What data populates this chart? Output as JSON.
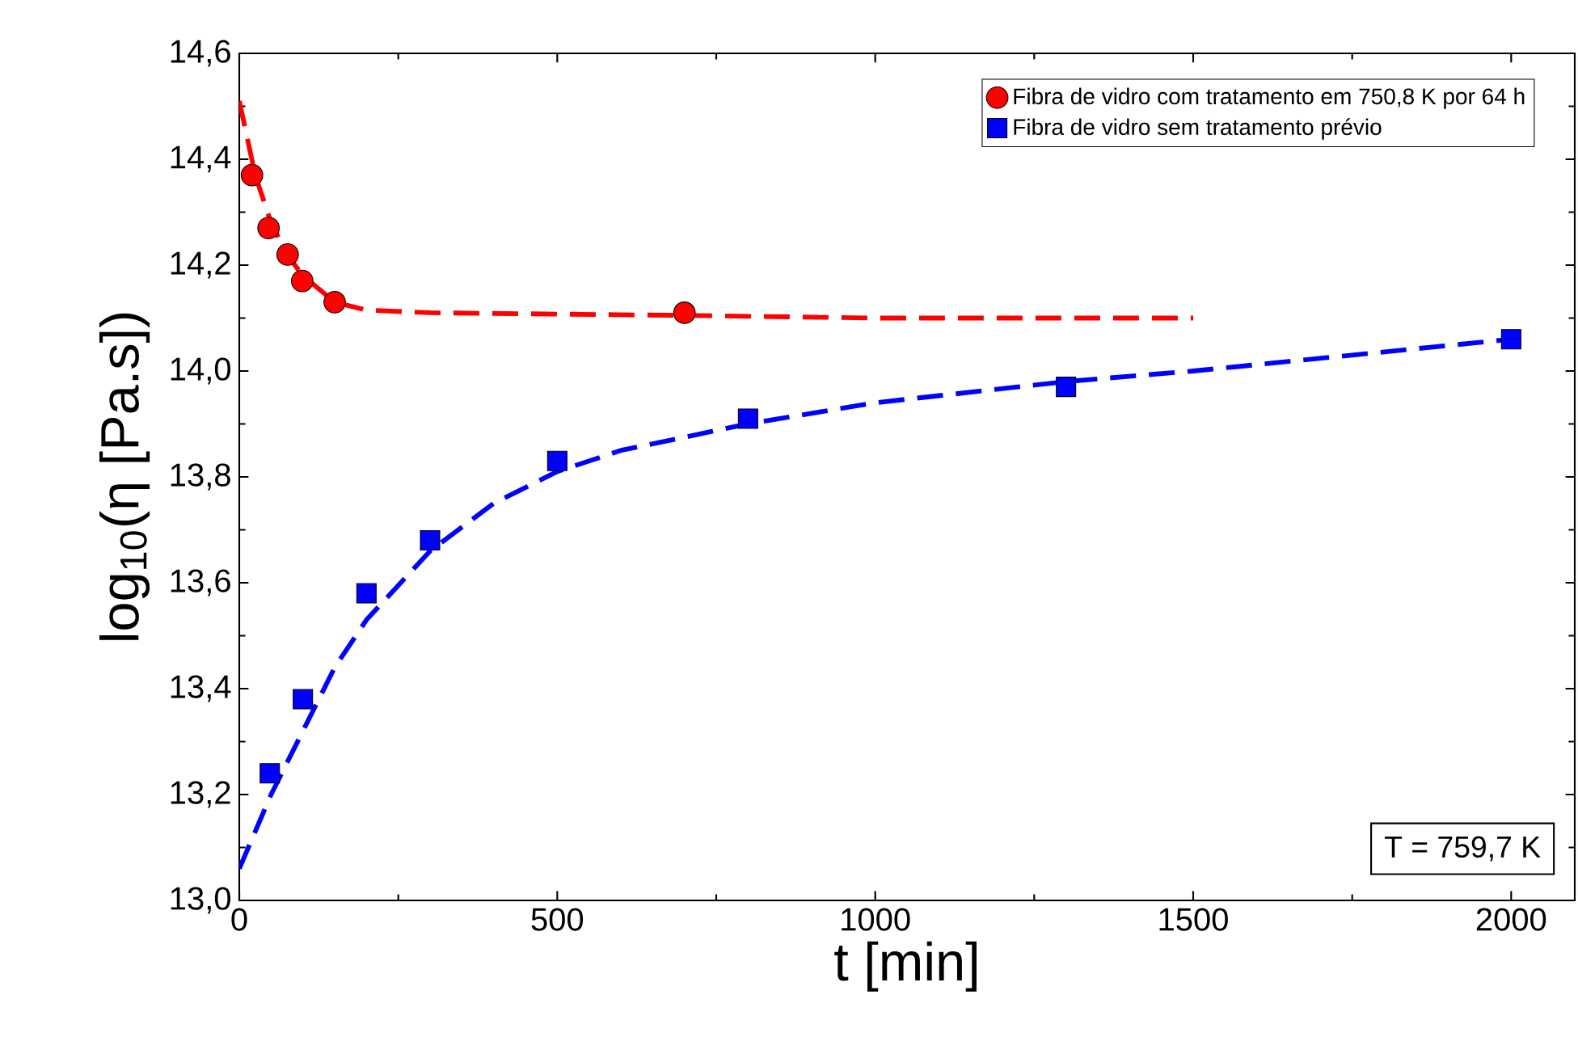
{
  "chart_data": {
    "type": "scatter",
    "xlabel": "t [min]",
    "ylabel": "log$_{10}$(η [Pa.s])",
    "xlim": [
      0,
      2100
    ],
    "ylim": [
      13.0,
      14.6
    ],
    "xticks": [
      0,
      500,
      1000,
      1500,
      2000
    ],
    "yticks": [
      {
        "value": 13.0,
        "label": "13,0"
      },
      {
        "value": 13.2,
        "label": "13,2"
      },
      {
        "value": 13.4,
        "label": "13,4"
      },
      {
        "value": 13.6,
        "label": "13,6"
      },
      {
        "value": 13.8,
        "label": "13,8"
      },
      {
        "value": 14.0,
        "label": "14,0"
      },
      {
        "value": 14.2,
        "label": "14,2"
      },
      {
        "value": 14.4,
        "label": "14,4"
      },
      {
        "value": 14.6,
        "label": "14,6"
      }
    ],
    "legend": "top right",
    "grid": false,
    "series": [
      {
        "name": "Fibra de vidro com tratamento em 750,8 K por 64 h",
        "color": "#ff0000",
        "marker": "circle",
        "x": [
          20,
          46,
          76,
          99,
          150,
          700
        ],
        "values": [
          14.37,
          14.27,
          14.22,
          14.17,
          14.13,
          14.11
        ]
      },
      {
        "name": "Fibra de vidro sem tratamento prévio",
        "color": "#0000ff",
        "marker": "square",
        "x": [
          48,
          100,
          200,
          300,
          500,
          800,
          1300,
          2000
        ],
        "values": [
          13.24,
          13.38,
          13.58,
          13.68,
          13.83,
          13.91,
          13.97,
          14.06
        ]
      },
      {
        "type": "line",
        "color": "#ff0000",
        "line_style": "dashed",
        "marker": "none",
        "x": [
          0,
          25,
          50,
          75,
          100,
          150,
          200,
          300,
          700,
          1000,
          1500
        ],
        "values": [
          14.51,
          14.37,
          14.28,
          14.22,
          14.18,
          14.13,
          14.115,
          14.11,
          14.105,
          14.1,
          14.1
        ]
      },
      {
        "type": "line",
        "color": "#0000ff",
        "line_style": "dashed",
        "marker": "none",
        "x": [
          0,
          50,
          100,
          150,
          200,
          300,
          400,
          500,
          600,
          800,
          1000,
          1300,
          1500,
          1750,
          2000
        ],
        "values": [
          13.06,
          13.2,
          13.32,
          13.44,
          13.53,
          13.66,
          13.75,
          13.81,
          13.85,
          13.9,
          13.94,
          13.98,
          14.0,
          14.03,
          14.06
        ]
      }
    ],
    "annotations": [
      "T = 759,7 K"
    ]
  }
}
